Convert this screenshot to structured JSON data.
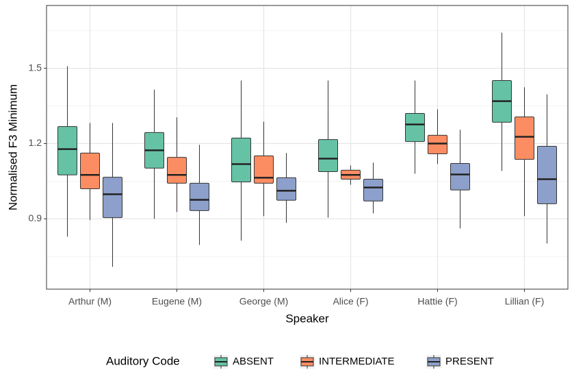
{
  "chart_data": {
    "type": "boxplot",
    "x_label": "Speaker",
    "y_label": "Normalised F3 Minimum",
    "legend_title": "Auditory Code",
    "legend_position": "bottom",
    "grid": true,
    "categories": [
      "Arthur (M)",
      "Eugene (M)",
      "George (M)",
      "Alice (F)",
      "Hattie (F)",
      "Lillian (F)"
    ],
    "ylim": [
      0.62,
      1.75
    ],
    "yticks": [
      {
        "value": 0.9,
        "label": "0.9"
      },
      {
        "value": 1.2,
        "label": "1.2"
      },
      {
        "value": 1.5,
        "label": "1.5"
      }
    ],
    "minor_yticks": [
      0.75,
      1.05,
      1.35,
      1.65
    ],
    "series": [
      {
        "name": "ABSENT",
        "color": "#66c2a5",
        "values": [
          {
            "low": 0.829,
            "q1": 1.075,
            "median": 1.178,
            "q3": 1.268,
            "high": 1.508
          },
          {
            "low": 0.9,
            "q1": 1.102,
            "median": 1.173,
            "q3": 1.244,
            "high": 1.415
          },
          {
            "low": 0.813,
            "q1": 1.047,
            "median": 1.118,
            "q3": 1.222,
            "high": 1.451
          },
          {
            "low": 0.905,
            "q1": 1.088,
            "median": 1.14,
            "q3": 1.216,
            "high": 1.451
          },
          {
            "low": 1.08,
            "q1": 1.208,
            "median": 1.276,
            "q3": 1.32,
            "high": 1.451
          },
          {
            "low": 1.091,
            "q1": 1.285,
            "median": 1.369,
            "q3": 1.451,
            "high": 1.642
          }
        ]
      },
      {
        "name": "INTERMEDIATE",
        "color": "#fc8d62",
        "values": [
          {
            "low": 0.895,
            "q1": 1.02,
            "median": 1.075,
            "q3": 1.162,
            "high": 1.282
          },
          {
            "low": 0.927,
            "q1": 1.042,
            "median": 1.075,
            "q3": 1.145,
            "high": 1.304
          },
          {
            "low": 0.911,
            "q1": 1.042,
            "median": 1.064,
            "q3": 1.151,
            "high": 1.287
          },
          {
            "low": 1.036,
            "q1": 1.058,
            "median": 1.075,
            "q3": 1.094,
            "high": 1.113
          },
          {
            "low": 1.118,
            "q1": 1.159,
            "median": 1.2,
            "q3": 1.233,
            "high": 1.336
          },
          {
            "low": 0.911,
            "q1": 1.137,
            "median": 1.227,
            "q3": 1.306,
            "high": 1.424
          }
        ]
      },
      {
        "name": "PRESENT",
        "color": "#8da0cb",
        "values": [
          {
            "low": 0.709,
            "q1": 0.905,
            "median": 0.998,
            "q3": 1.066,
            "high": 1.282
          },
          {
            "low": 0.796,
            "q1": 0.933,
            "median": 0.976,
            "q3": 1.042,
            "high": 1.195
          },
          {
            "low": 0.884,
            "q1": 0.974,
            "median": 1.012,
            "q3": 1.064,
            "high": 1.162
          },
          {
            "low": 0.922,
            "q1": 0.971,
            "median": 1.025,
            "q3": 1.058,
            "high": 1.124
          },
          {
            "low": 0.862,
            "q1": 1.015,
            "median": 1.077,
            "q3": 1.121,
            "high": 1.255
          },
          {
            "low": 0.802,
            "q1": 0.96,
            "median": 1.058,
            "q3": 1.189,
            "high": 1.396
          }
        ]
      }
    ]
  }
}
